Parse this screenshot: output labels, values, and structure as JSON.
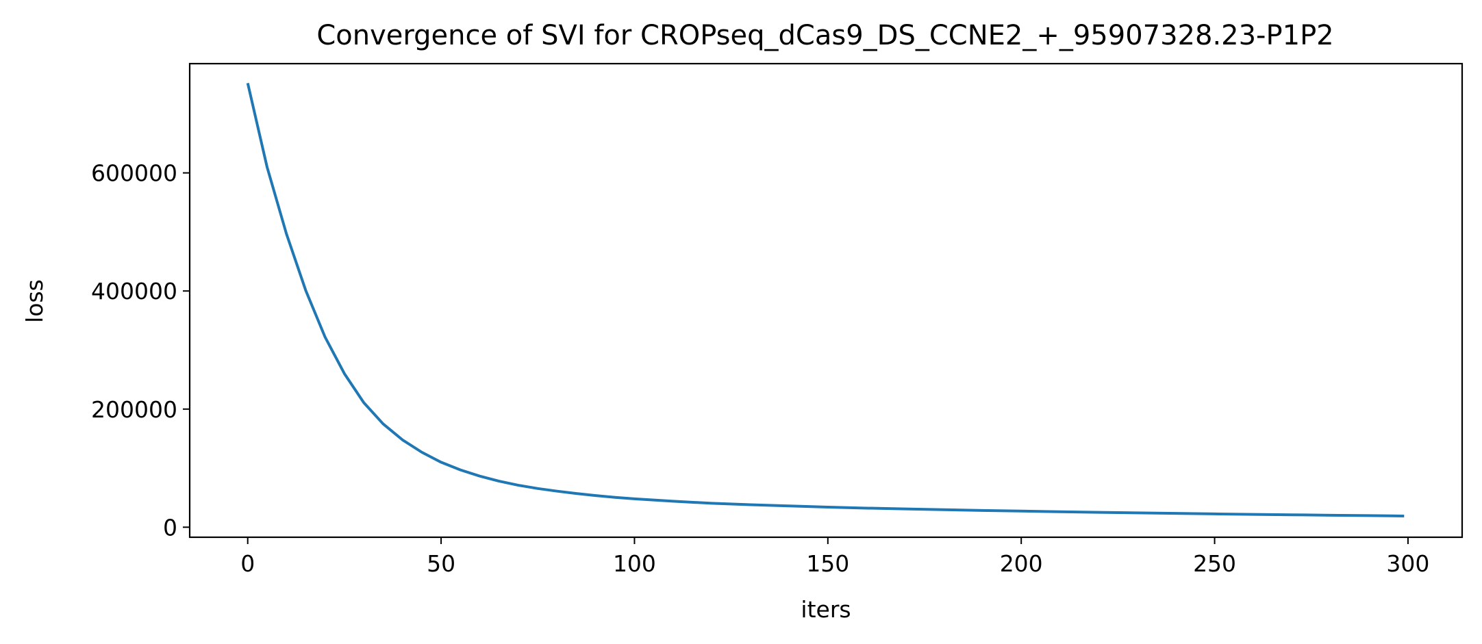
{
  "chart_data": {
    "type": "line",
    "title": "Convergence of SVI for CROPseq_dCas9_DS_CCNE2_+_95907328.23-P1P2",
    "xlabel": "iters",
    "ylabel": "loss",
    "xlim": [
      -15,
      314
    ],
    "ylim": [
      -17000,
      785000
    ],
    "x_ticks": [
      0,
      50,
      100,
      150,
      200,
      250,
      300
    ],
    "y_ticks": [
      0,
      200000,
      400000,
      600000
    ],
    "grid": false,
    "legend": "none",
    "series": [
      {
        "color": "#1f77b4",
        "x": [
          0,
          5,
          10,
          15,
          20,
          25,
          30,
          35,
          40,
          45,
          50,
          55,
          60,
          65,
          70,
          75,
          80,
          85,
          90,
          95,
          100,
          110,
          120,
          130,
          140,
          150,
          160,
          170,
          180,
          190,
          200,
          210,
          220,
          230,
          240,
          250,
          260,
          270,
          280,
          290,
          299
        ],
        "y": [
          752000,
          610000,
          497000,
          401000,
          322000,
          260000,
          211000,
          175000,
          148000,
          127000,
          110000,
          97000,
          86500,
          78000,
          71000,
          65500,
          61000,
          57000,
          53500,
          50500,
          48000,
          44000,
          40500,
          38000,
          36000,
          34000,
          32300,
          31000,
          29700,
          28400,
          27300,
          26200,
          25200,
          24300,
          23400,
          22500,
          21700,
          21000,
          20300,
          19600,
          19000
        ]
      }
    ]
  }
}
